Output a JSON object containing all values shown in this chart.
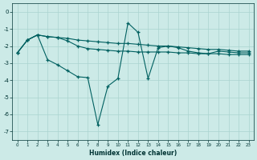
{
  "xlabel": "Humidex (Indice chaleur)",
  "bg_color": "#cceae7",
  "grid_color": "#aad4d0",
  "line_color": "#006060",
  "xlim": [
    -0.5,
    23.5
  ],
  "ylim": [
    -7.5,
    0.5
  ],
  "curve1_x": [
    0,
    1,
    2,
    3,
    4,
    5,
    6,
    7,
    8,
    9,
    10,
    11,
    12,
    13,
    14,
    15,
    16,
    17,
    18,
    19,
    20,
    21,
    22,
    23
  ],
  "curve1_y": [
    -2.4,
    -1.65,
    -1.35,
    -1.45,
    -1.5,
    -1.55,
    -1.65,
    -1.7,
    -1.75,
    -1.8,
    -1.85,
    -1.85,
    -1.9,
    -1.95,
    -2.0,
    -2.0,
    -2.05,
    -2.1,
    -2.15,
    -2.2,
    -2.2,
    -2.25,
    -2.3,
    -2.3
  ],
  "curve2_x": [
    0,
    1,
    2,
    3,
    4,
    5,
    6,
    7,
    8,
    9,
    10,
    11,
    12,
    13,
    14,
    15,
    16,
    17,
    18,
    19,
    20,
    21,
    22,
    23
  ],
  "curve2_y": [
    -2.4,
    -1.65,
    -1.35,
    -1.45,
    -1.5,
    -1.7,
    -2.0,
    -2.15,
    -2.2,
    -2.25,
    -2.3,
    -2.3,
    -2.35,
    -2.35,
    -2.35,
    -2.35,
    -2.4,
    -2.4,
    -2.45,
    -2.45,
    -2.45,
    -2.5,
    -2.5,
    -2.5
  ],
  "curve3_x": [
    0,
    1,
    2,
    3,
    4,
    5,
    6,
    7,
    8,
    9,
    10,
    11,
    12,
    13,
    14,
    15,
    16,
    17,
    18,
    19,
    20,
    21,
    22,
    23
  ],
  "curve3_y": [
    -2.4,
    -1.65,
    -1.35,
    -2.8,
    -3.1,
    -3.45,
    -3.8,
    -3.85,
    -6.6,
    -4.35,
    -3.9,
    -0.65,
    -1.2,
    -3.9,
    -2.1,
    -2.0,
    -2.1,
    -2.3,
    -2.4,
    -2.45,
    -2.3,
    -2.35,
    -2.4,
    -2.4
  ]
}
